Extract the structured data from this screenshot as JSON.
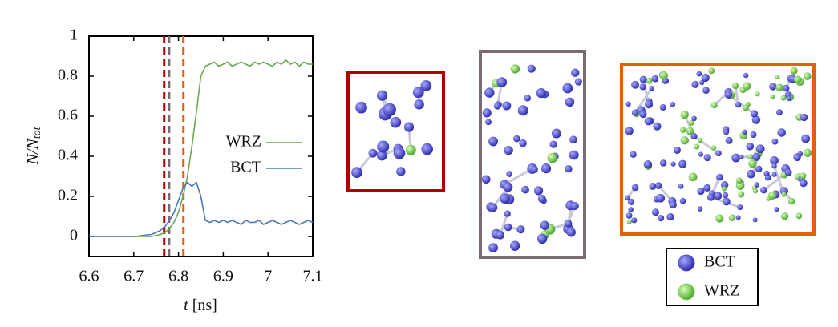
{
  "chart_data": {
    "type": "line",
    "ylabel": {
      "main": "N/N",
      "sub": "tot"
    },
    "xlabel": {
      "var": "t",
      "unit": "[ns]"
    },
    "xlim": [
      6.6,
      7.1
    ],
    "xticks": [
      6.6,
      6.7,
      6.8,
      6.9,
      7,
      7.1
    ],
    "ylim": [
      -0.1,
      1
    ],
    "yticks": [
      0,
      0.2,
      0.4,
      0.6,
      0.8,
      1
    ],
    "x": [
      6.6,
      6.61,
      6.62,
      6.63,
      6.64,
      6.65,
      6.66,
      6.67,
      6.68,
      6.69,
      6.7,
      6.71,
      6.72,
      6.73,
      6.74,
      6.75,
      6.76,
      6.77,
      6.78,
      6.79,
      6.8,
      6.81,
      6.82,
      6.83,
      6.84,
      6.85,
      6.86,
      6.87,
      6.88,
      6.89,
      6.9,
      6.91,
      6.92,
      6.93,
      6.94,
      6.95,
      6.96,
      6.97,
      6.98,
      6.99,
      7,
      7.01,
      7.02,
      7.03,
      7.04,
      7.05,
      7.06,
      7.07,
      7.08,
      7.09,
      7.1
    ],
    "series": [
      {
        "name": "WRZ",
        "color": "#6aa84f",
        "values": [
          0,
          0,
          0,
          0,
          0,
          0,
          0,
          0,
          0,
          0,
          0,
          0,
          0,
          0,
          0,
          0.005,
          0.01,
          0.02,
          0.04,
          0.07,
          0.12,
          0.2,
          0.3,
          0.45,
          0.62,
          0.8,
          0.85,
          0.86,
          0.87,
          0.85,
          0.86,
          0.87,
          0.85,
          0.86,
          0.87,
          0.86,
          0.85,
          0.87,
          0.86,
          0.87,
          0.86,
          0.85,
          0.87,
          0.86,
          0.88,
          0.86,
          0.87,
          0.85,
          0.87,
          0.86,
          0.86
        ]
      },
      {
        "name": "BCT",
        "color": "#4a78b8",
        "values": [
          0,
          0,
          0,
          0,
          0,
          0,
          0,
          0,
          0,
          0,
          0,
          0.002,
          0.005,
          0.008,
          0.01,
          0.02,
          0.03,
          0.05,
          0.08,
          0.12,
          0.18,
          0.24,
          0.27,
          0.25,
          0.27,
          0.2,
          0.08,
          0.07,
          0.08,
          0.07,
          0.08,
          0.07,
          0.08,
          0.07,
          0.06,
          0.08,
          0.07,
          0.07,
          0.08,
          0.06,
          0.07,
          0.08,
          0.07,
          0.06,
          0.07,
          0.08,
          0.07,
          0.06,
          0.07,
          0.08,
          0.07
        ]
      }
    ],
    "vlines": [
      {
        "x": 6.768,
        "color": "#b00000"
      },
      {
        "x": 6.779,
        "color": "#7a6a72"
      },
      {
        "x": 6.811,
        "color": "#e06010"
      }
    ],
    "atom_legend": [
      {
        "name": "BCT",
        "color": "#5050d8"
      },
      {
        "name": "WRZ",
        "color": "#88d858"
      }
    ]
  }
}
